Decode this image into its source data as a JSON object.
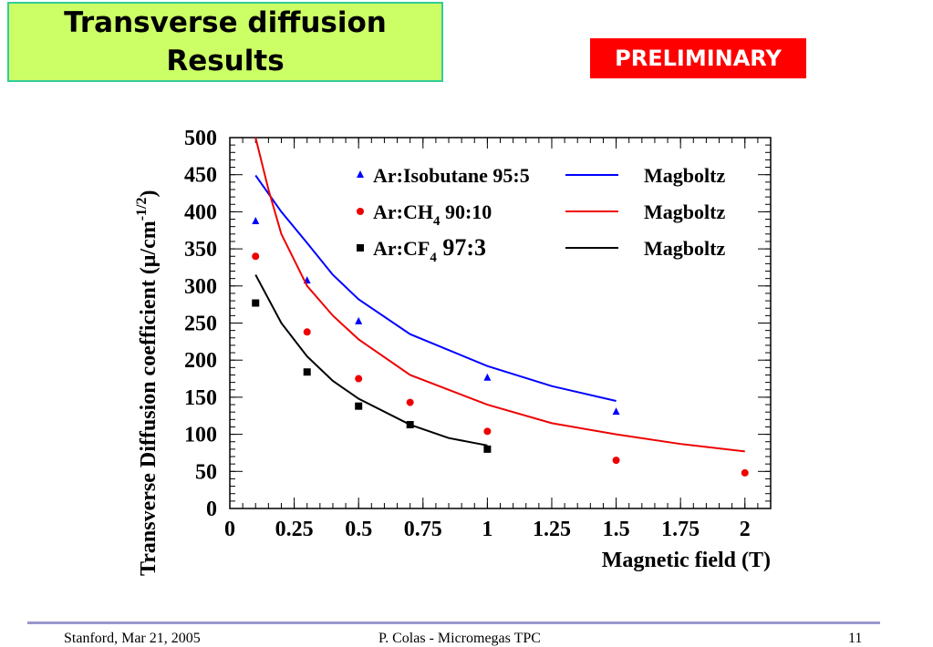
{
  "slide": {
    "title_line1": "Transverse diffusion",
    "title_line2": "Results",
    "badge": "PRELIMINARY"
  },
  "footer": {
    "left": "Stanford,  Mar 21, 2005",
    "center": "P. Colas  -  Micromegas TPC",
    "page": "11"
  },
  "colors": {
    "blue": "#0000ff",
    "red": "#ee0000",
    "black": "#000000"
  },
  "chart_data": {
    "type": "scatter",
    "xlabel": "Magnetic field (T)",
    "ylabel": "Transverse Diffusion coefficient (μ/cm",
    "ylabel_sup": "-1/2",
    "ylabel_end": ")",
    "xlim": [
      0,
      2.1
    ],
    "ylim": [
      0,
      500
    ],
    "xticks": [
      "0",
      "0.25",
      "0.5",
      "0.75",
      "1",
      "1.25",
      "1.5",
      "1.75",
      "2"
    ],
    "xtick_values": [
      0,
      0.25,
      0.5,
      0.75,
      1,
      1.25,
      1.5,
      1.75,
      2
    ],
    "yticks": [
      "0",
      "50",
      "100",
      "150",
      "200",
      "250",
      "300",
      "350",
      "400",
      "450",
      "500"
    ],
    "ytick_values": [
      0,
      50,
      100,
      150,
      200,
      250,
      300,
      350,
      400,
      450,
      500
    ],
    "legend_placement": "top-right",
    "series": [
      {
        "name": "Ar:Isobutane 95:5",
        "name_main": "Ar:Isobutane 95:5",
        "name_sub": "",
        "name_tail": "",
        "marker": "triangle",
        "color": "#0000ff",
        "line_label": "Magboltz",
        "x": [
          0.1,
          0.3,
          0.5,
          1,
          1.5
        ],
        "y": [
          387,
          307,
          252,
          176,
          130
        ],
        "curve_x": [
          0.1,
          0.2,
          0.3,
          0.4,
          0.5,
          0.7,
          1,
          1.25,
          1.5
        ],
        "curve_y": [
          449,
          400,
          358,
          315,
          282,
          235,
          192,
          165,
          145
        ]
      },
      {
        "name": "Ar:CH4 90:10",
        "name_main": "Ar:CH",
        "name_sub": "4",
        "name_tail": " 90:10",
        "marker": "circle",
        "color": "#ee0000",
        "line_label": "Magboltz",
        "x": [
          0.1,
          0.3,
          0.5,
          0.7,
          1,
          1.5,
          2
        ],
        "y": [
          340,
          238,
          175,
          143,
          104,
          65,
          48
        ],
        "curve_x": [
          0.1,
          0.15,
          0.2,
          0.3,
          0.4,
          0.5,
          0.7,
          1,
          1.25,
          1.5,
          1.75,
          2
        ],
        "curve_y": [
          500,
          430,
          370,
          300,
          260,
          228,
          180,
          140,
          115,
          100,
          87,
          77
        ]
      },
      {
        "name": "Ar:CF4 97:3",
        "name_main": "Ar:CF",
        "name_sub": "4",
        "name_tail": " 97:3",
        "marker": "square",
        "color": "#000000",
        "line_label": "Magboltz",
        "x": [
          0.1,
          0.3,
          0.5,
          0.7,
          1
        ],
        "y": [
          277,
          184,
          138,
          113,
          80
        ],
        "curve_x": [
          0.1,
          0.2,
          0.3,
          0.4,
          0.5,
          0.7,
          0.85,
          1
        ],
        "curve_y": [
          315,
          250,
          205,
          172,
          148,
          113,
          95,
          85
        ]
      }
    ]
  }
}
